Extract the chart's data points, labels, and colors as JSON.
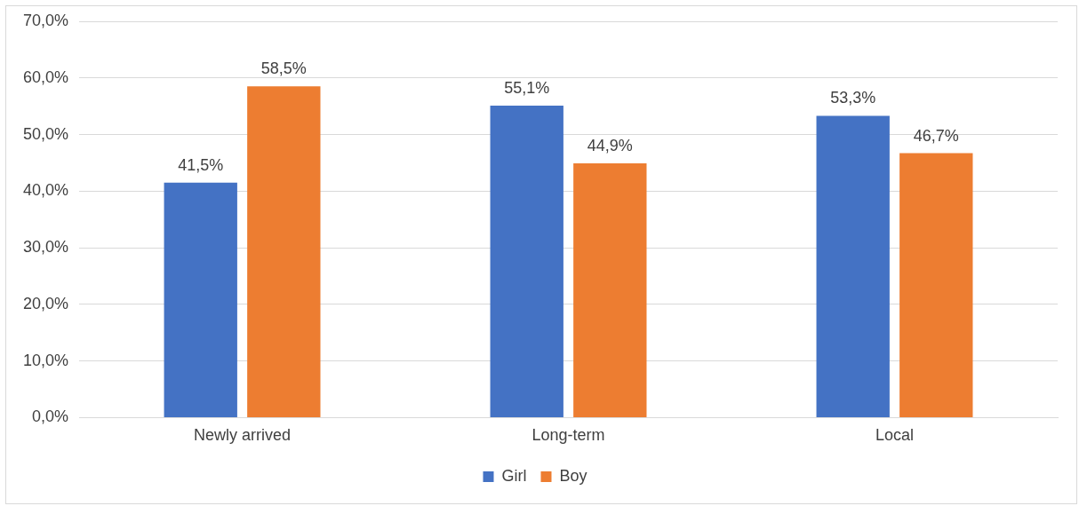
{
  "chart_data": {
    "type": "bar",
    "categories": [
      "Newly arrived",
      "Long-term",
      "Local"
    ],
    "series": [
      {
        "name": "Girl",
        "color": "#4472c4",
        "values": [
          41.5,
          55.1,
          53.3
        ],
        "value_labels": [
          "41,5%",
          "55,1%",
          "53,3%"
        ]
      },
      {
        "name": "Boy",
        "color": "#ed7d31",
        "values": [
          58.5,
          44.9,
          46.7
        ],
        "value_labels": [
          "58,5%",
          "44,9%",
          "46,7%"
        ]
      }
    ],
    "ylim": [
      0,
      70
    ],
    "yticks": [
      {
        "value": 0,
        "label": "0,0%"
      },
      {
        "value": 10,
        "label": "10,0%"
      },
      {
        "value": 20,
        "label": "20,0%"
      },
      {
        "value": 30,
        "label": "30,0%"
      },
      {
        "value": 40,
        "label": "40,0%"
      },
      {
        "value": 50,
        "label": "50,0%"
      },
      {
        "value": 60,
        "label": "60,0%"
      },
      {
        "value": 70,
        "label": "70,0%"
      }
    ],
    "grid": "y",
    "legend": "bottom"
  }
}
